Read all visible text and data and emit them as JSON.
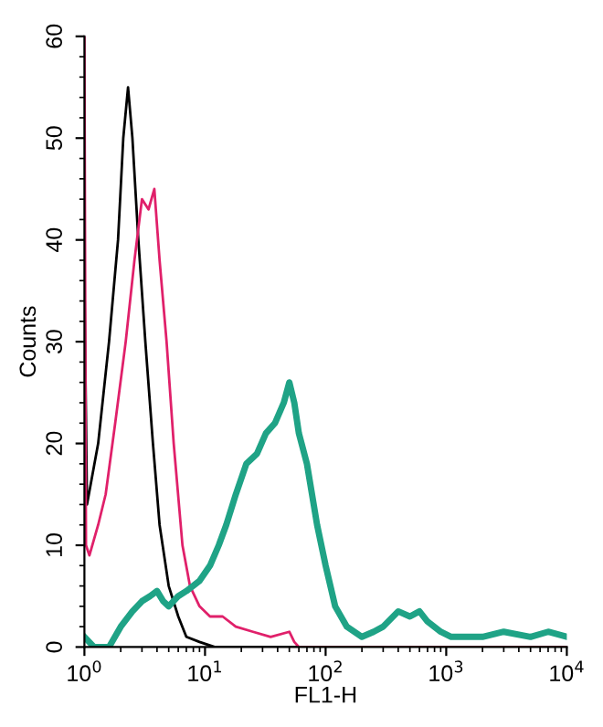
{
  "chart_data": {
    "type": "line",
    "xlabel": "FL1-H",
    "ylabel": "Counts",
    "log": "x",
    "xlim": [
      1,
      10000
    ],
    "ylim": [
      0,
      60
    ],
    "xticks": [
      {
        "value": 1,
        "label": "10$^{0}$"
      },
      {
        "value": 10,
        "label": "10$^{1}$"
      },
      {
        "value": 100,
        "label": "10$^{2}$"
      },
      {
        "value": 1000,
        "label": "10$^{3}$"
      },
      {
        "value": 10000,
        "label": "10$^{4}$"
      }
    ],
    "yticks": [
      0,
      10,
      20,
      30,
      40,
      50,
      60
    ],
    "grid": false,
    "legend": false,
    "marker": "none",
    "line_style": "solid",
    "series": [
      {
        "color": "#000000",
        "x": [
          1,
          1.05,
          1.3,
          1.6,
          1.9,
          2.1,
          2.3,
          2.5,
          2.8,
          3.2,
          3.7,
          4.2,
          5,
          6,
          7,
          9,
          12,
          10000
        ],
        "values": [
          36,
          14,
          20,
          30,
          40,
          50,
          55,
          50,
          40,
          30,
          20,
          12,
          6,
          3,
          1,
          0.5,
          0,
          0
        ]
      },
      {
        "color": "#e0206a",
        "x": [
          1,
          1.03,
          1.1,
          1.3,
          1.5,
          1.8,
          2.2,
          2.6,
          3.0,
          3.4,
          3.8,
          4.2,
          4.8,
          5.5,
          6.5,
          7.5,
          9,
          11,
          14,
          18,
          25,
          35,
          50,
          55,
          60,
          10000
        ],
        "values": [
          60,
          10,
          9,
          12,
          15,
          22,
          30,
          38,
          44,
          43,
          45,
          38,
          30,
          20,
          10,
          6,
          4,
          3,
          3,
          2,
          1.5,
          1,
          1.5,
          0.5,
          0,
          0
        ]
      },
      {
        "color": "#1fa386",
        "x": [
          1,
          1.2,
          1.6,
          2,
          2.5,
          3,
          3.5,
          4,
          4.5,
          5,
          6,
          7,
          9,
          11,
          13,
          15,
          18,
          22,
          27,
          32,
          38,
          45,
          50,
          55,
          60,
          70,
          85,
          100,
          120,
          150,
          200,
          250,
          300,
          400,
          500,
          600,
          700,
          900,
          1100,
          2000,
          3000,
          5000,
          7000,
          10000
        ],
        "values": [
          1,
          0,
          0,
          2,
          3.5,
          4.5,
          5,
          5.5,
          4.5,
          4,
          5,
          5.5,
          6.5,
          8,
          10,
          12,
          15,
          18,
          19,
          21,
          22,
          24,
          26,
          24,
          21,
          18,
          12,
          8,
          4,
          2,
          1,
          1.5,
          2,
          3.5,
          3,
          3.5,
          2.5,
          1.5,
          1,
          1,
          1.5,
          1,
          1.5,
          1
        ]
      }
    ]
  }
}
